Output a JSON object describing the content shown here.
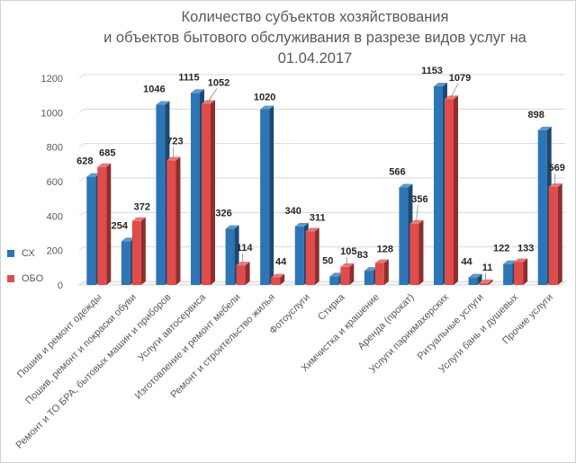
{
  "chart_data": {
    "type": "bar",
    "title_lines": [
      "Количество субъектов хозяйствования",
      "и объектов бытового обслуживания в разрезе видов услуг на",
      "01.04.2017"
    ],
    "categories": [
      "Пошив и ремонт одежды",
      "Пошив, ремонт и покраски обуви",
      "Ремонт и ТО БРА, бытовых машин и приборов",
      "Услуги автосервиса",
      "Изготовление и ремонт мебели",
      "Ремонт и строительство жилья",
      "Фотоуслуги",
      "Стирка",
      "Химчистка и крашение",
      "Аренда (прокат)",
      "Услуги парикмахерских",
      "Ритуальные услуги",
      "Услуги бань и душевых",
      "Прочие услуги"
    ],
    "series": [
      {
        "name": "СХ",
        "color": "#2E75B6",
        "values": [
          628,
          254,
          1046,
          1115,
          326,
          1020,
          340,
          50,
          83,
          566,
          1153,
          44,
          122,
          898
        ]
      },
      {
        "name": "ОБО",
        "color": "#E04B4B",
        "values": [
          685,
          372,
          723,
          1052,
          114,
          44,
          311,
          105,
          128,
          356,
          1079,
          11,
          133,
          569
        ]
      }
    ],
    "yticks": [
      0,
      200,
      400,
      600,
      800,
      1000,
      1200
    ],
    "ylim": [
      0,
      1200
    ],
    "legend_position": "left",
    "grid": true,
    "style": "3d-column"
  }
}
